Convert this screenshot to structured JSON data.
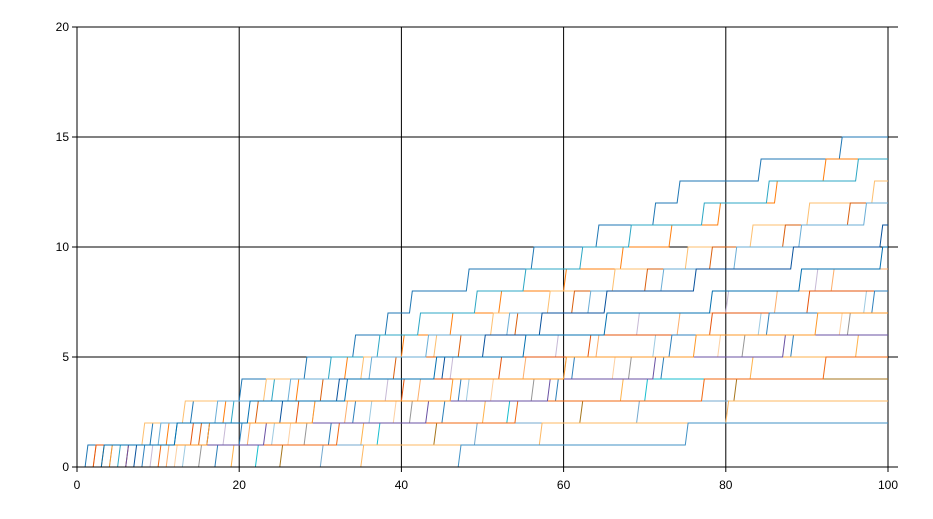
{
  "chart_data": {
    "type": "line",
    "title": "",
    "xlabel": "",
    "ylabel": "",
    "xlim": [
      0,
      100
    ],
    "ylim": [
      0,
      20
    ],
    "x_ticks": [
      0,
      20,
      40,
      60,
      80,
      100
    ],
    "y_ticks": [
      0,
      5,
      10,
      15,
      20
    ],
    "x_tick_labels": [
      "0",
      "20",
      "40",
      "60",
      "80",
      "100"
    ],
    "y_tick_labels": [
      "0",
      "5",
      "10",
      "15",
      "20"
    ],
    "grid": true,
    "legend": "none",
    "step_style": "random-walk staircase; each series increases by 1 at each step",
    "series": [
      {
        "color": "#1f77b4",
        "step_x": [
          1,
          9,
          14,
          20,
          28,
          34,
          38,
          41,
          48,
          56,
          64,
          71,
          74,
          84,
          94
        ]
      },
      {
        "color": "#ff7f0e",
        "step_x": [
          3,
          11,
          18,
          27,
          33,
          40,
          46,
          52,
          60,
          67,
          73,
          79,
          86,
          92
        ]
      },
      {
        "color": "#2ca7c4",
        "step_x": [
          5,
          12,
          19,
          24,
          31,
          37,
          42,
          49,
          55,
          62,
          68,
          77,
          85,
          96
        ]
      },
      {
        "color": "#fdbf6f",
        "step_x": [
          2,
          8,
          13,
          23,
          35,
          44,
          51,
          58,
          66,
          75,
          83,
          90,
          98
        ]
      },
      {
        "color": "#d95f0e",
        "step_x": [
          6,
          15,
          22,
          30,
          39,
          47,
          54,
          61,
          70,
          78,
          87,
          95
        ]
      },
      {
        "color": "#6baed6",
        "step_x": [
          4,
          10,
          17,
          26,
          36,
          43,
          53,
          63,
          72,
          81,
          89,
          97
        ]
      },
      {
        "color": "#08519c",
        "step_x": [
          7,
          16,
          25,
          32,
          45,
          50,
          57,
          65,
          76,
          88,
          99
        ]
      },
      {
        "color": "#c7b9d6",
        "step_x": [
          9,
          18,
          29,
          38,
          46,
          59,
          69,
          80,
          91
        ]
      },
      {
        "color": "#fdae6b",
        "step_x": [
          11,
          21,
          33,
          42,
          55,
          64,
          74,
          86,
          93
        ]
      },
      {
        "color": "#9ecae1",
        "step_x": [
          13,
          24,
          36,
          48,
          60,
          71,
          84,
          97
        ]
      },
      {
        "color": "#e6550d",
        "step_x": [
          2,
          14,
          27,
          40,
          52,
          63,
          78,
          90
        ]
      },
      {
        "color": "#3182bd",
        "step_x": [
          8,
          20,
          34,
          47,
          61,
          73,
          85,
          98
        ]
      },
      {
        "color": "#fdd0a2",
        "step_x": [
          12,
          26,
          39,
          51,
          66,
          79,
          94
        ]
      },
      {
        "color": "#969696",
        "step_x": [
          15,
          28,
          41,
          56,
          68,
          82,
          95
        ]
      },
      {
        "color": "#2c7fb8",
        "step_x": [
          17,
          31,
          45,
          59,
          72,
          88
        ]
      },
      {
        "color": "#feb24c",
        "step_x": [
          19,
          35,
          50,
          67,
          83,
          96
        ]
      },
      {
        "color": "#17becf",
        "step_x": [
          22,
          37,
          53,
          70
        ]
      },
      {
        "color": "#a6761d",
        "step_x": [
          25,
          44,
          62,
          81
        ]
      },
      {
        "color": "#74a9cf",
        "step_x": [
          30,
          49,
          69
        ]
      },
      {
        "color": "#fdb863",
        "step_x": [
          35,
          57,
          80
        ]
      },
      {
        "color": "#4292c6",
        "step_x": [
          47,
          75
        ]
      },
      {
        "color": "#f16913",
        "step_x": [
          10,
          32,
          54,
          77,
          92
        ]
      },
      {
        "color": "#6a51a3",
        "step_x": [
          6,
          23,
          43,
          58,
          71,
          87
        ]
      },
      {
        "color": "#fe9929",
        "step_x": [
          4,
          16,
          29,
          46,
          60,
          76,
          91
        ]
      },
      {
        "color": "#0570b0",
        "step_x": [
          3,
          12,
          21,
          33,
          44,
          55,
          65,
          78,
          89,
          99
        ]
      }
    ]
  }
}
